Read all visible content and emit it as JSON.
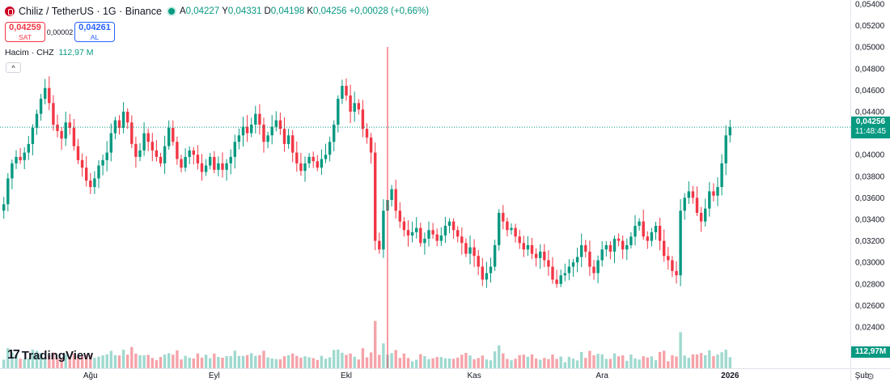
{
  "header": {
    "symbol": "Chiliz / TetherUS · 1G · Binance",
    "open_label": "A",
    "open": "0,04227",
    "high_label": "Y",
    "high": "0,04331",
    "low_label": "D",
    "low": "0,04198",
    "close_label": "K",
    "close": "0,04256",
    "change": "+0,00028 (+0,66%)"
  },
  "trade": {
    "sell_price": "0,04259",
    "sell_label": "SAT",
    "spread": "0,00002",
    "buy_price": "0,04261",
    "buy_label": "AL"
  },
  "volume_legend": {
    "label": "Hacim · CHZ",
    "value": "112,97 M"
  },
  "collapse_icon": "^",
  "branding": {
    "logo_mark": "17",
    "name": "TradingView"
  },
  "price_label": {
    "price": "0,04256",
    "countdown": "11:48:45"
  },
  "volume_label": "112,97M",
  "colors": {
    "up": "#089981",
    "down": "#f23645",
    "up_vol": "#9fd9cf",
    "down_vol": "#f5a3a9"
  },
  "chart_data": {
    "type": "candlestick",
    "interval": "1G",
    "y_axis": {
      "ylim": [
        0.0225,
        0.054
      ],
      "ticks": [
        "0,05400",
        "0,05200",
        "0,05000",
        "0,04800",
        "0,04600",
        "0,04400",
        "0,04200",
        "0,04000",
        "0,03800",
        "0,03600",
        "0,03400",
        "0,03200",
        "0,03000",
        "0,02800",
        "0,02600",
        "0,02400"
      ],
      "tick_values": [
        0.054,
        0.052,
        0.05,
        0.048,
        0.046,
        0.044,
        0.042,
        0.04,
        0.038,
        0.036,
        0.034,
        0.032,
        0.03,
        0.028,
        0.026,
        0.024
      ],
      "position": "right"
    },
    "x_axis": {
      "labels": [
        "Ağu",
        "Eyl",
        "Ekl",
        "Kas",
        "Ara",
        "2026",
        "Şub"
      ],
      "label_index": [
        21,
        51,
        83,
        114,
        145,
        176,
        208
      ]
    },
    "last_close": 0.04256,
    "highlighted_index": 93,
    "close": [
      0.0354,
      0.0378,
      0.0392,
      0.0398,
      0.0395,
      0.0402,
      0.041,
      0.0425,
      0.0438,
      0.0452,
      0.0462,
      0.0448,
      0.0428,
      0.0422,
      0.0415,
      0.043,
      0.0425,
      0.0408,
      0.0395,
      0.0388,
      0.0376,
      0.037,
      0.0378,
      0.039,
      0.0395,
      0.0402,
      0.042,
      0.0432,
      0.0425,
      0.044,
      0.043,
      0.041,
      0.0398,
      0.0404,
      0.042,
      0.0412,
      0.0404,
      0.0398,
      0.0392,
      0.0408,
      0.0425,
      0.0412,
      0.0396,
      0.0388,
      0.0398,
      0.0404,
      0.04,
      0.0392,
      0.0384,
      0.039,
      0.0398,
      0.0386,
      0.0392,
      0.0386,
      0.0392,
      0.0398,
      0.0412,
      0.0418,
      0.0426,
      0.042,
      0.0428,
      0.0438,
      0.0428,
      0.0412,
      0.0418,
      0.0426,
      0.0432,
      0.0424,
      0.041,
      0.0418,
      0.0402,
      0.0392,
      0.0385,
      0.0392,
      0.0398,
      0.0394,
      0.0388,
      0.0396,
      0.04,
      0.0412,
      0.0428,
      0.0452,
      0.0464,
      0.0455,
      0.044,
      0.0448,
      0.0442,
      0.0424,
      0.0416,
      0.0402,
      0.032,
      0.0312,
      0.0348,
      0.0358,
      0.0368,
      0.0348,
      0.0338,
      0.033,
      0.0325,
      0.0328,
      0.0332,
      0.0318,
      0.0322,
      0.033,
      0.0326,
      0.032,
      0.0325,
      0.0334,
      0.0338,
      0.033,
      0.0324,
      0.0318,
      0.0308,
      0.0314,
      0.0306,
      0.0296,
      0.0284,
      0.029,
      0.0296,
      0.0316,
      0.0346,
      0.0338,
      0.033,
      0.0332,
      0.0324,
      0.0318,
      0.0312,
      0.0316,
      0.0308,
      0.0304,
      0.031,
      0.0302,
      0.0296,
      0.0284,
      0.028,
      0.0288,
      0.029,
      0.0296,
      0.03,
      0.0305,
      0.0316,
      0.031,
      0.0296,
      0.029,
      0.0302,
      0.0312,
      0.0316,
      0.031,
      0.0322,
      0.032,
      0.0312,
      0.0316,
      0.0324,
      0.0334,
      0.0338,
      0.0324,
      0.032,
      0.0328,
      0.0334,
      0.032,
      0.0306,
      0.0302,
      0.0292,
      0.0288,
      0.0348,
      0.036,
      0.0366,
      0.036,
      0.0346,
      0.0338,
      0.035,
      0.0366,
      0.0362,
      0.037,
      0.0392,
      0.0418,
      0.04256
    ]
  }
}
